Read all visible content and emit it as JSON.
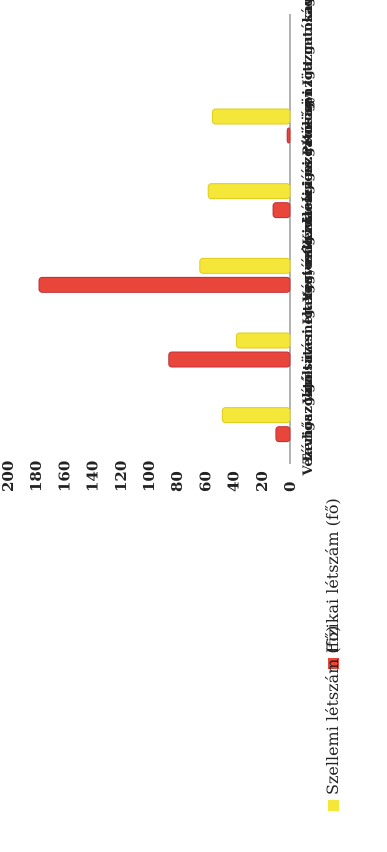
{
  "chart_data": {
    "type": "bar",
    "title": "",
    "xlabel": "",
    "ylabel": "",
    "categories": [
      "Vezérigazgató",
      "Távhőszolgáltatási Igazgatóság",
      "Városüzemeltetési-és Kivitelezési...",
      "Vagyonkezelési igazgatóság",
      "Gazdasági és Pénzügyi Igazgatóság",
      "Kölcsönzött munkavállaló"
    ],
    "series": [
      {
        "name": "Fizikai létszám (fő)",
        "color": "#e8463a",
        "values": [
          10,
          86,
          178,
          12,
          2,
          0
        ]
      },
      {
        "name": "Szellemi létszám (fő)",
        "color": "#f5e63a",
        "values": [
          48,
          38,
          64,
          58,
          55,
          0
        ]
      }
    ],
    "ylim": [
      0,
      200
    ],
    "yticks": [
      0,
      20,
      40,
      60,
      80,
      100,
      120,
      140,
      160,
      180,
      200
    ],
    "grid": false,
    "legend": "bottom",
    "orientation": "rotated"
  }
}
